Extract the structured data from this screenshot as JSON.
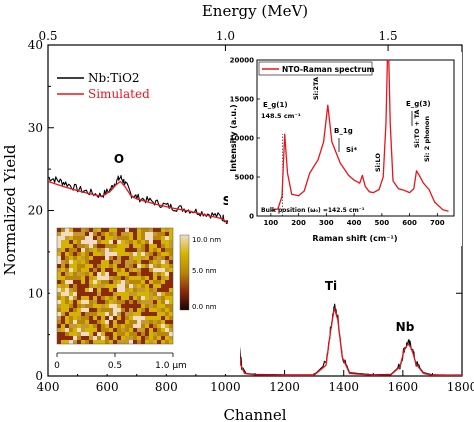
{
  "chart_data": [
    {
      "type": "line",
      "xlabel": "Channel",
      "ylabel": "Normalized Yield",
      "top_axis_label": "Energy (MeV)",
      "xlim": [
        400,
        1800
      ],
      "ylim": [
        0,
        40
      ],
      "x_ticks": [
        400,
        600,
        800,
        1000,
        1200,
        1400,
        1600,
        1800
      ],
      "y_ticks": [
        0,
        10,
        20,
        30,
        40
      ],
      "top_ticks": [
        "0.5",
        "1.0",
        "1.5"
      ],
      "top_tick_channels": [
        400,
        1000,
        1550
      ],
      "grid": false,
      "legend_position": "top-left",
      "series": [
        {
          "name": "Nb:TiO2",
          "color": "#000000",
          "x": [
            400,
            430,
            460,
            500,
            540,
            580,
            610,
            630,
            645,
            660,
            680,
            700,
            740,
            780,
            820,
            860,
            900,
            940,
            980,
            1000,
            1015,
            1025,
            1035,
            1045,
            1055,
            1070,
            1100,
            1200,
            1300,
            1340,
            1355,
            1368,
            1380,
            1395,
            1420,
            1500,
            1560,
            1590,
            1605,
            1618,
            1630,
            1645,
            1670,
            1700,
            1800
          ],
          "values": [
            24.0,
            23.7,
            23.3,
            22.6,
            22.2,
            21.8,
            22.5,
            23.5,
            24.0,
            23.4,
            22.0,
            21.6,
            21.2,
            20.8,
            20.4,
            20.2,
            19.9,
            19.6,
            19.3,
            19.0,
            18.2,
            15.5,
            9.5,
            4.0,
            1.2,
            0.3,
            0.2,
            0.15,
            0.15,
            1.5,
            5.5,
            8.5,
            7.0,
            2.5,
            0.4,
            0.15,
            0.2,
            1.2,
            3.3,
            4.1,
            3.5,
            1.5,
            0.4,
            0.15,
            0.1
          ]
        },
        {
          "name": "Simulated",
          "color": "#e8141c",
          "x": [
            400,
            460,
            520,
            580,
            610,
            630,
            645,
            660,
            680,
            700,
            760,
            820,
            880,
            940,
            990,
            1010,
            1022,
            1032,
            1042,
            1052,
            1065,
            1100,
            1200,
            1300,
            1340,
            1355,
            1368,
            1380,
            1395,
            1420,
            1500,
            1560,
            1590,
            1605,
            1618,
            1630,
            1645,
            1670,
            1700,
            1800
          ],
          "values": [
            23.5,
            22.8,
            22.2,
            21.7,
            22.3,
            23.1,
            23.5,
            22.9,
            21.8,
            21.4,
            20.8,
            20.3,
            19.9,
            19.4,
            19.0,
            18.4,
            15.5,
            10.0,
            4.5,
            1.3,
            0.3,
            0.15,
            0.1,
            0.1,
            1.3,
            5.3,
            8.2,
            6.8,
            2.3,
            0.3,
            0.1,
            0.15,
            1.1,
            3.2,
            3.9,
            3.3,
            1.4,
            0.3,
            0.1,
            0.05
          ]
        }
      ],
      "annotations": [
        {
          "text": "O",
          "x": 640,
          "y": 25.8
        },
        {
          "text": "Si",
          "x": 1010,
          "y": 20.5
        },
        {
          "text": "Ti",
          "x": 1368,
          "y": 10.0
        },
        {
          "text": "Nb",
          "x": 1618,
          "y": 5.6
        }
      ]
    },
    {
      "type": "line",
      "xlabel": "Raman shift (cm⁻¹)",
      "ylabel": "Intensity (a.u.)",
      "xlim": [
        50,
        760
      ],
      "ylim": [
        0,
        20000
      ],
      "x_ticks": [
        100,
        200,
        300,
        400,
        500,
        600,
        700
      ],
      "y_ticks": [
        0,
        5000,
        10000,
        15000,
        20000
      ],
      "legend_position": "top",
      "series": [
        {
          "name": "NTO-Raman spectrum",
          "color": "#e8141c",
          "x": [
            100,
            125,
            140,
            150,
            160,
            175,
            200,
            220,
            240,
            270,
            290,
            305,
            320,
            350,
            380,
            400,
            420,
            430,
            440,
            455,
            470,
            490,
            505,
            515,
            520,
            525,
            530,
            540,
            560,
            580,
            600,
            615,
            625,
            635,
            650,
            670,
            690,
            720,
            740
          ],
          "values": [
            700,
            900,
            2500,
            10500,
            5500,
            2800,
            2600,
            3200,
            5500,
            7200,
            9500,
            14200,
            9500,
            6800,
            5200,
            4600,
            4200,
            5200,
            3800,
            3100,
            3000,
            3400,
            5000,
            12000,
            20000,
            20000,
            12000,
            4500,
            3500,
            3300,
            3000,
            3500,
            5800,
            5200,
            4200,
            3400,
            1800,
            800,
            600
          ]
        }
      ],
      "annotations": [
        {
          "lines": [
            "E_g(1)",
            "148.5 cm⁻¹"
          ],
          "x": 150
        },
        {
          "text": "Si:2TA",
          "x": 305
        },
        {
          "text": "B_1g",
          "x": 400
        },
        {
          "text": "Si*",
          "x": 435
        },
        {
          "text": "Si:LO",
          "x": 520
        },
        {
          "text": "Si:TO + TA",
          "x": 620
        },
        {
          "text": "Si: 2 phonon",
          "x": 660
        },
        {
          "text": "E_g(3)",
          "x": 640
        },
        {
          "text": "Bulk position (ω₀) =142.5 cm⁻¹",
          "x": 142.5
        }
      ]
    },
    {
      "type": "heatmap",
      "x_ticks": [
        "0",
        "0.5",
        "1.0 μm"
      ],
      "colorbar_ticks": [
        "10.0 nm",
        "5.0 nm",
        "0.0 nm"
      ],
      "colorbar_colors": [
        "#f0dcc8",
        "#d4b400",
        "#b8860b",
        "#8b2a0a",
        "#1a0500"
      ]
    }
  ]
}
